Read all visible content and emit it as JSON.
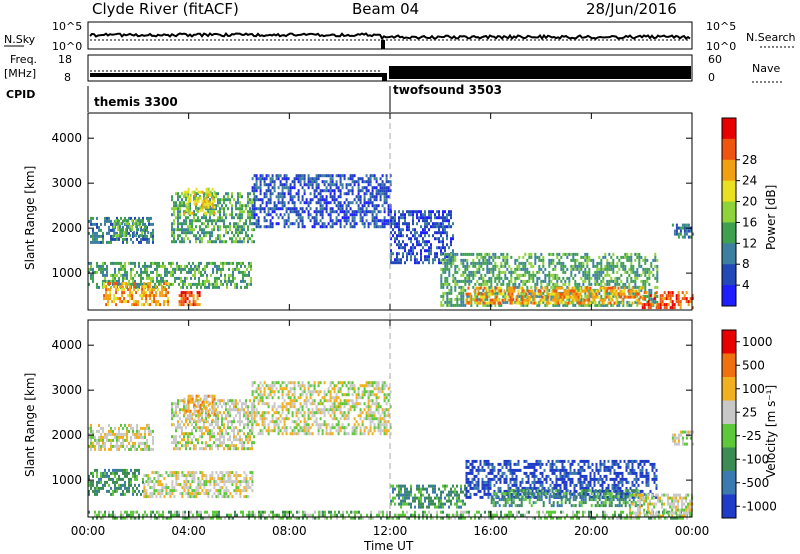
{
  "header": {
    "title": "Clyde River (fitACF)",
    "beam": "Beam 04",
    "date": "28/Jun/2016"
  },
  "noise_panel": {
    "left_label": "N.Sky",
    "right_label": "N.Search",
    "left_ticks": [
      "10^5",
      "10^0"
    ],
    "right_ticks": [
      "10^5",
      "10^0"
    ],
    "step_at_hour": 12
  },
  "freq_panel": {
    "left_label_top": "Freq.",
    "left_label_unit": "[MHz]",
    "right_label": "Nave",
    "left_ticks": [
      "18",
      "8"
    ],
    "right_ticks": [
      "60",
      "0"
    ],
    "cpid_label": "CPID",
    "cpid_segments": [
      {
        "label": "themis 3300",
        "start_hour": 0
      },
      {
        "label": "twofsound 3503",
        "start_hour": 12
      }
    ]
  },
  "chart_data": [
    {
      "type": "heatmap",
      "name": "power",
      "ylabel": "Slant Range [km]",
      "ylim": [
        180,
        4560
      ],
      "yticks": [
        1000,
        2000,
        3000,
        4000
      ],
      "colorbar_label": "Power [dB]",
      "colorbar_ticks": [
        "4",
        "8",
        "12",
        "16",
        "20",
        "24",
        "28"
      ],
      "colorbar_colors": [
        "#1e1eff",
        "#2348b8",
        "#3d7fa0",
        "#3fa050",
        "#8fd33a",
        "#e8e020",
        "#f0a010",
        "#f05510",
        "#e80000"
      ],
      "echo_regions": [
        {
          "x": [
            0.0,
            2.6
          ],
          "y": [
            1650,
            2250
          ],
          "level": 2
        },
        {
          "x": [
            1.0,
            2.4
          ],
          "y": [
            1850,
            2200
          ],
          "level": 3
        },
        {
          "x": [
            3.3,
            6.6
          ],
          "y": [
            1700,
            2800
          ],
          "level": 3
        },
        {
          "x": [
            3.8,
            5.0
          ],
          "y": [
            2300,
            2900
          ],
          "level": 5
        },
        {
          "x": [
            6.5,
            12.0
          ],
          "y": [
            2000,
            3200
          ],
          "level": 1
        },
        {
          "x": [
            0.0,
            6.5
          ],
          "y": [
            700,
            1250
          ],
          "level": 3
        },
        {
          "x": [
            0.6,
            3.2
          ],
          "y": [
            300,
            800
          ],
          "level": 6
        },
        {
          "x": [
            3.6,
            4.4
          ],
          "y": [
            280,
            600
          ],
          "level": 7
        },
        {
          "x": [
            12.0,
            14.5
          ],
          "y": [
            1200,
            2400
          ],
          "level": 1
        },
        {
          "x": [
            14.0,
            22.6
          ],
          "y": [
            300,
            1450
          ],
          "level": 3
        },
        {
          "x": [
            15.0,
            22.0
          ],
          "y": [
            350,
            700
          ],
          "level": 6
        },
        {
          "x": [
            22.0,
            24.0
          ],
          "y": [
            220,
            600
          ],
          "level": 7
        },
        {
          "x": [
            23.2,
            24.0
          ],
          "y": [
            1800,
            2100
          ],
          "level": 2
        }
      ]
    },
    {
      "type": "heatmap",
      "name": "velocity",
      "xlabel": "Time UT",
      "ylabel": "Slant Range [km]",
      "xlim": [
        0,
        24
      ],
      "xticks": [
        "00:00",
        "04:00",
        "08:00",
        "12:00",
        "16:00",
        "20:00",
        "00:00"
      ],
      "ylim": [
        180,
        4560
      ],
      "yticks": [
        1000,
        2000,
        3000,
        4000
      ],
      "colorbar_label": "Velocity [m s⁻¹]",
      "colorbar_ticks": [
        "1000",
        "500",
        "100",
        "25",
        "-25",
        "-100",
        "-500",
        "-1000"
      ],
      "colorbar_colors": [
        "#1e3cc8",
        "#3b7ab0",
        "#3c8a54",
        "#5cc83a",
        "#c8c8c8",
        "#f0b020",
        "#f07010",
        "#e80000"
      ],
      "echo_regions": [
        {
          "x": [
            0.0,
            2.6
          ],
          "y": [
            1650,
            2250
          ],
          "level": 4
        },
        {
          "x": [
            3.3,
            6.6
          ],
          "y": [
            1700,
            2800
          ],
          "level": 4
        },
        {
          "x": [
            3.8,
            5.0
          ],
          "y": [
            2300,
            2900
          ],
          "level": 5
        },
        {
          "x": [
            6.5,
            12.0
          ],
          "y": [
            2000,
            3200
          ],
          "level": 4
        },
        {
          "x": [
            0.0,
            2.2
          ],
          "y": [
            700,
            1250
          ],
          "level": 2
        },
        {
          "x": [
            2.2,
            6.5
          ],
          "y": [
            600,
            1200
          ],
          "level": 4
        },
        {
          "x": [
            12.0,
            15.0
          ],
          "y": [
            400,
            900
          ],
          "level": 2
        },
        {
          "x": [
            15.0,
            22.6
          ],
          "y": [
            600,
            1450
          ],
          "level": 0
        },
        {
          "x": [
            16.0,
            22.0
          ],
          "y": [
            400,
            800
          ],
          "level": 2
        },
        {
          "x": [
            0.0,
            24.0
          ],
          "y": [
            180,
            320
          ],
          "level": 3
        },
        {
          "x": [
            21.5,
            24.0
          ],
          "y": [
            200,
            700
          ],
          "level": 4
        },
        {
          "x": [
            23.2,
            24.0
          ],
          "y": [
            1800,
            2100
          ],
          "level": 4
        }
      ]
    }
  ]
}
